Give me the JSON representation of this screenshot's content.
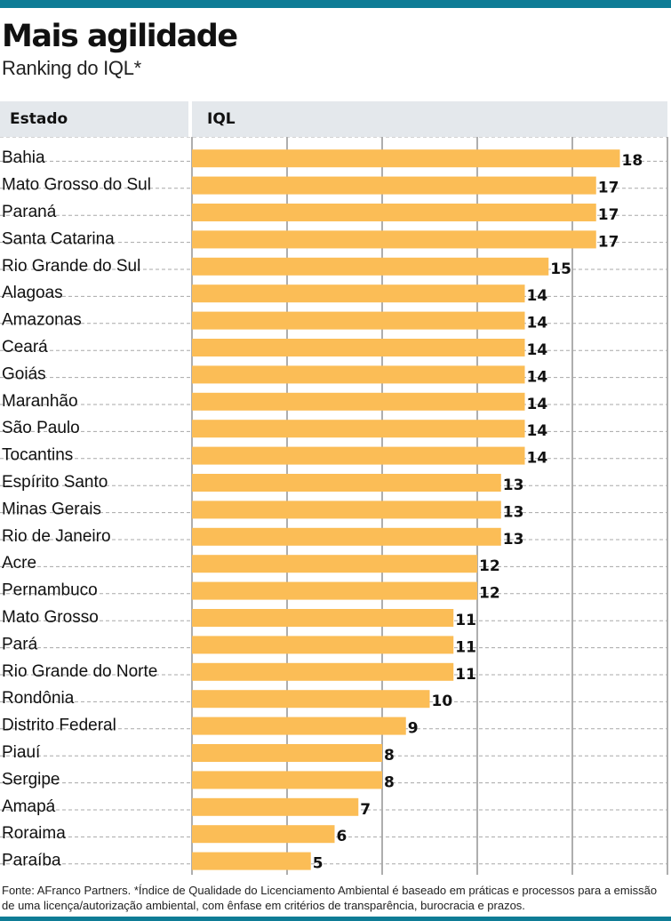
{
  "title": "Mais agilidade",
  "subtitle": "Ranking do IQL*",
  "header": {
    "col_state": "Estado",
    "col_value": "IQL"
  },
  "footer": "Fonte: AFranco Partners. *Índice de Qualidade do Licenciamento Ambiental é baseado em práticas e processos para a emissão de uma licença/autorização ambiental, com ênfase em critérios de transparência, burocracia e prazos.",
  "colors": {
    "bar": "#fbbd56",
    "accent": "#0e7c96",
    "header_bg": "#e4e8ec",
    "grid": "#9a9a9a"
  },
  "chart_data": {
    "type": "bar",
    "orientation": "horizontal",
    "categories": [
      "Bahia",
      "Mato Grosso do Sul",
      "Paraná",
      "Santa Catarina",
      "Rio Grande do Sul",
      "Alagoas",
      "Amazonas",
      "Ceará",
      "Goiás",
      "Maranhão",
      "São Paulo",
      "Tocantins",
      "Espírito Santo",
      "Minas Gerais",
      "Rio de Janeiro",
      "Acre",
      "Pernambuco",
      "Mato Grosso",
      "Pará",
      "Rio Grande do Norte",
      "Rondônia",
      "Distrito Federal",
      "Piauí",
      "Sergipe",
      "Amapá",
      "Roraima",
      "Paraíba"
    ],
    "values": [
      18,
      17,
      17,
      17,
      15,
      14,
      14,
      14,
      14,
      14,
      14,
      14,
      13,
      13,
      13,
      12,
      12,
      11,
      11,
      11,
      10,
      9,
      8,
      8,
      7,
      6,
      5
    ],
    "xlim": [
      0,
      20
    ],
    "grid": true
  }
}
